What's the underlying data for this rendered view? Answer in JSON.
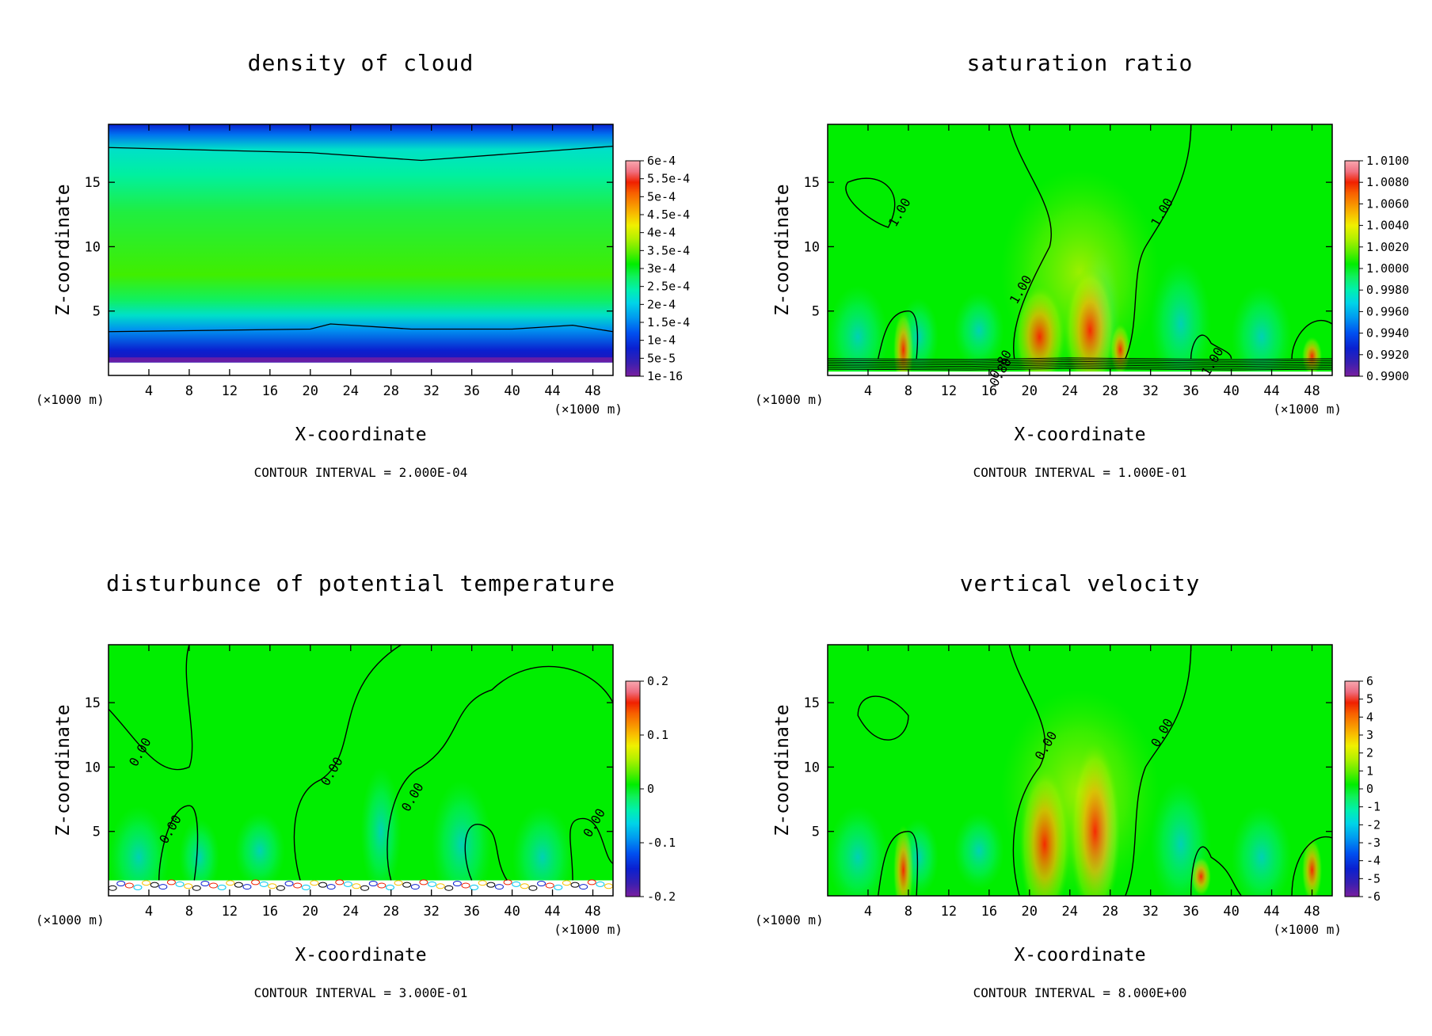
{
  "chart_data": [
    {
      "type": "heatmap",
      "title": "density of cloud",
      "xlabel": "X-coordinate",
      "ylabel": "Z-coordinate",
      "x_unit": "(×1000 m)",
      "y_unit": "(×1000 m)",
      "xlim": [
        0,
        50
      ],
      "ylim": [
        0,
        19.5
      ],
      "xticks": [
        4,
        8,
        12,
        16,
        20,
        24,
        28,
        32,
        36,
        40,
        44,
        48
      ],
      "yticks": [
        5,
        10,
        15
      ],
      "colorbar": {
        "labels": [
          "6e-4",
          "5.5e-4",
          "5e-4",
          "4.5e-4",
          "4e-4",
          "3.5e-4",
          "3e-4",
          "2.5e-4",
          "2e-4",
          "1.5e-4",
          "1e-4",
          "5e-5",
          "1e-16"
        ]
      },
      "contour_interval": "CONTOUR INTERVAL = 2.000E-04",
      "contour_labels": []
    },
    {
      "type": "heatmap",
      "title": "saturation ratio",
      "xlabel": "X-coordinate",
      "ylabel": "Z-coordinate",
      "x_unit": "(×1000 m)",
      "y_unit": "(×1000 m)",
      "xlim": [
        0,
        50
      ],
      "ylim": [
        0,
        19.5
      ],
      "xticks": [
        4,
        8,
        12,
        16,
        20,
        24,
        28,
        32,
        36,
        40,
        44,
        48
      ],
      "yticks": [
        5,
        10,
        15
      ],
      "colorbar": {
        "labels": [
          "1.0100",
          "1.0080",
          "1.0060",
          "1.0040",
          "1.0020",
          "1.0000",
          "0.9980",
          "0.9960",
          "0.9940",
          "0.9920",
          "0.9900"
        ]
      },
      "contour_interval": "CONTOUR INTERVAL = 1.000E-01",
      "contour_labels": [
        {
          "text": "1.00",
          "x": 7.5,
          "z": 12.5
        },
        {
          "text": "1.00",
          "x": 33.5,
          "z": 12.5
        },
        {
          "text": "1.00",
          "x": 19.5,
          "z": 6.5
        },
        {
          "text": "0.80",
          "x": 17.5,
          "z": 0.7
        },
        {
          "text": "0.80",
          "x": 17.5,
          "z": 0.1
        },
        {
          "text": "1.00",
          "x": 38.5,
          "z": 0.9
        }
      ]
    },
    {
      "type": "heatmap",
      "title": "disturbunce of potential temperature",
      "xlabel": "X-coordinate",
      "ylabel": "Z-coordinate",
      "x_unit": "(×1000 m)",
      "y_unit": "(×1000 m)",
      "xlim": [
        0,
        50
      ],
      "ylim": [
        0,
        19.5
      ],
      "xticks": [
        4,
        8,
        12,
        16,
        20,
        24,
        28,
        32,
        36,
        40,
        44,
        48
      ],
      "yticks": [
        5,
        10,
        15
      ],
      "colorbar": {
        "labels": [
          "0.2",
          "0.1",
          "0",
          "-0.1",
          "-0.2"
        ]
      },
      "contour_interval": "CONTOUR INTERVAL = 3.000E-01",
      "contour_labels": [
        {
          "text": "0.00",
          "x": 3.5,
          "z": 11
        },
        {
          "text": "0.00",
          "x": 22.5,
          "z": 9.5
        },
        {
          "text": "0.00",
          "x": 30.5,
          "z": 7.5
        },
        {
          "text": "0.00",
          "x": 6.5,
          "z": 5.0
        },
        {
          "text": "0.00",
          "x": 48.5,
          "z": 5.5
        }
      ]
    },
    {
      "type": "heatmap",
      "title": "vertical velocity",
      "xlabel": "X-coordinate",
      "ylabel": "Z-coordinate",
      "x_unit": "(×1000 m)",
      "y_unit": "(×1000 m)",
      "xlim": [
        0,
        50
      ],
      "ylim": [
        0,
        19.5
      ],
      "xticks": [
        4,
        8,
        12,
        16,
        20,
        24,
        28,
        32,
        36,
        40,
        44,
        48
      ],
      "yticks": [
        5,
        10,
        15
      ],
      "colorbar": {
        "labels": [
          "6",
          "5",
          "4",
          "3",
          "2",
          "1",
          "0",
          "-1",
          "-2",
          "-3",
          "-4",
          "-5",
          "-6"
        ]
      },
      "contour_interval": "CONTOUR INTERVAL = 8.000E+00",
      "contour_labels": [
        {
          "text": "0.00",
          "x": 22,
          "z": 11.5
        },
        {
          "text": "0.00",
          "x": 33.5,
          "z": 12.5
        }
      ]
    }
  ],
  "colors": {
    "field_base": "#00ee00",
    "colormap": [
      "#7a1fa0",
      "#3a1fb0",
      "#0a20d0",
      "#0050f0",
      "#0098f0",
      "#00d4e8",
      "#00f0b0",
      "#10f060",
      "#00ee00",
      "#60ee00",
      "#b4f000",
      "#f0f000",
      "#f8c000",
      "#f89000",
      "#f86000",
      "#f02000",
      "#ee3040",
      "#f07080",
      "#f8a8b0"
    ]
  }
}
